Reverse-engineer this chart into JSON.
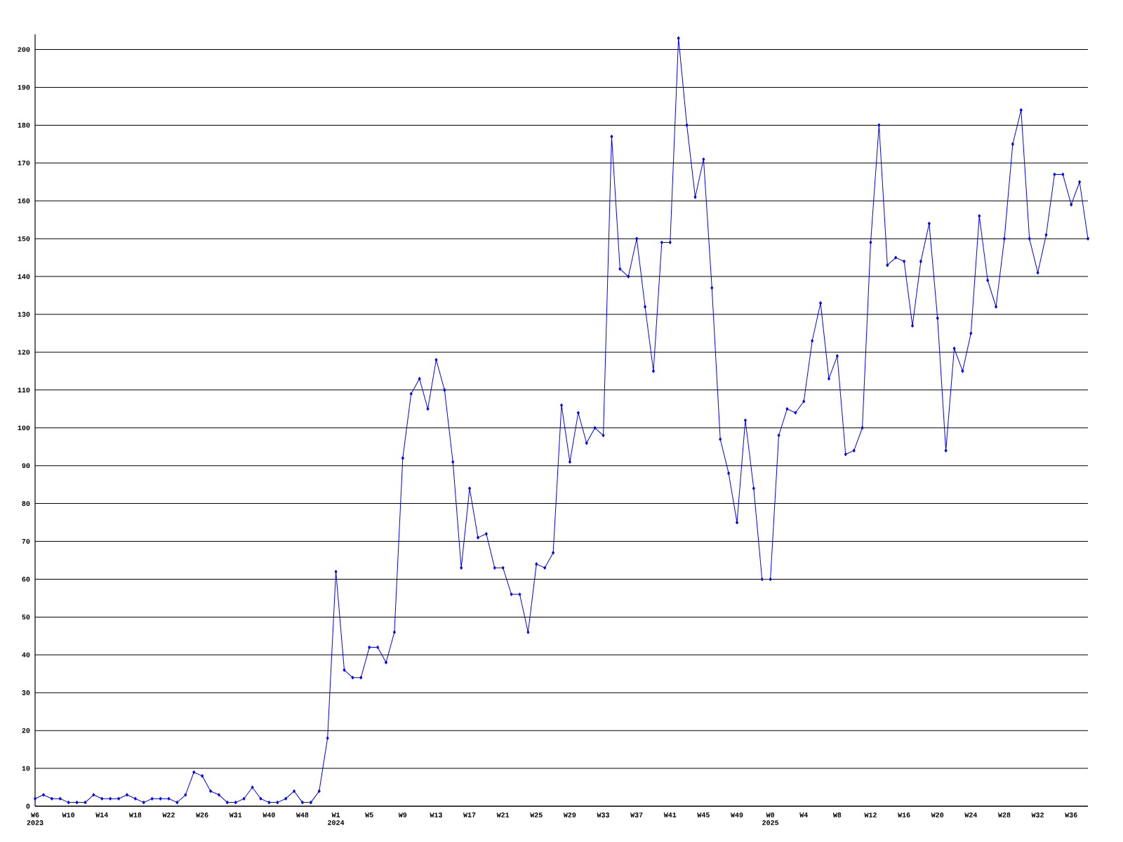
{
  "chart_data": {
    "type": "line",
    "categories": [
      "W6 2023",
      null,
      null,
      null,
      "W10",
      null,
      null,
      null,
      "W14",
      null,
      null,
      null,
      "W18",
      null,
      null,
      null,
      "W22",
      null,
      null,
      null,
      "W26",
      null,
      null,
      null,
      "W31",
      null,
      null,
      null,
      "W40",
      null,
      null,
      null,
      "W48",
      null,
      null,
      null,
      "W1 2024",
      null,
      null,
      null,
      "W5",
      null,
      null,
      null,
      "W9",
      null,
      null,
      null,
      "W13",
      null,
      null,
      null,
      "W17",
      null,
      null,
      null,
      "W21",
      null,
      null,
      null,
      "W25",
      null,
      null,
      null,
      "W29",
      null,
      null,
      null,
      "W33",
      null,
      null,
      null,
      "W37",
      null,
      null,
      null,
      "W41",
      null,
      null,
      null,
      "W45",
      null,
      null,
      null,
      "W49",
      null,
      null,
      null,
      "W0 2025",
      null,
      null,
      null,
      "W4",
      null,
      null,
      null,
      "W8",
      null,
      null,
      null,
      "W12",
      null,
      null,
      null,
      "W16",
      null,
      null,
      null,
      "W20",
      null,
      null,
      null,
      "W24",
      null,
      null,
      null,
      "W28",
      null,
      null,
      null,
      "W32",
      null,
      null,
      null,
      "W36",
      null,
      null
    ],
    "series": [
      {
        "color": "#0000ff",
        "values": [
          2,
          3,
          2,
          2,
          1,
          1,
          1,
          3,
          2,
          2,
          2,
          3,
          2,
          1,
          2,
          2,
          2,
          1,
          3,
          9,
          8,
          4,
          3,
          1,
          1,
          2,
          5,
          2,
          1,
          1,
          2,
          4,
          1,
          1,
          4,
          18,
          62,
          36,
          34,
          34,
          42,
          42,
          38,
          46,
          92,
          109,
          113,
          105,
          118,
          110,
          91,
          63,
          84,
          71,
          72,
          63,
          63,
          56,
          56,
          46,
          64,
          63,
          67,
          106,
          91,
          104,
          96,
          100,
          98,
          177,
          142,
          140,
          150,
          132,
          115,
          149,
          149,
          203,
          180,
          161,
          171,
          137,
          97,
          88,
          75,
          102,
          84,
          60,
          60,
          98,
          105,
          104,
          107,
          123,
          133,
          113,
          119,
          93,
          94,
          100,
          149,
          180,
          143,
          145,
          144,
          127,
          144,
          154,
          129,
          94,
          121,
          115,
          125,
          156,
          139,
          132,
          150,
          175,
          184,
          150,
          141,
          151,
          167,
          167,
          159,
          165,
          150
        ]
      }
    ],
    "ylim": [
      0,
      204
    ],
    "yticks": [
      0,
      10,
      20,
      30,
      40,
      50,
      60,
      70,
      80,
      90,
      100,
      110,
      120,
      130,
      140,
      150,
      160,
      170,
      180,
      190,
      200
    ],
    "grid": "y",
    "marker": "diamond",
    "line_style": "solid",
    "legend": false
  }
}
